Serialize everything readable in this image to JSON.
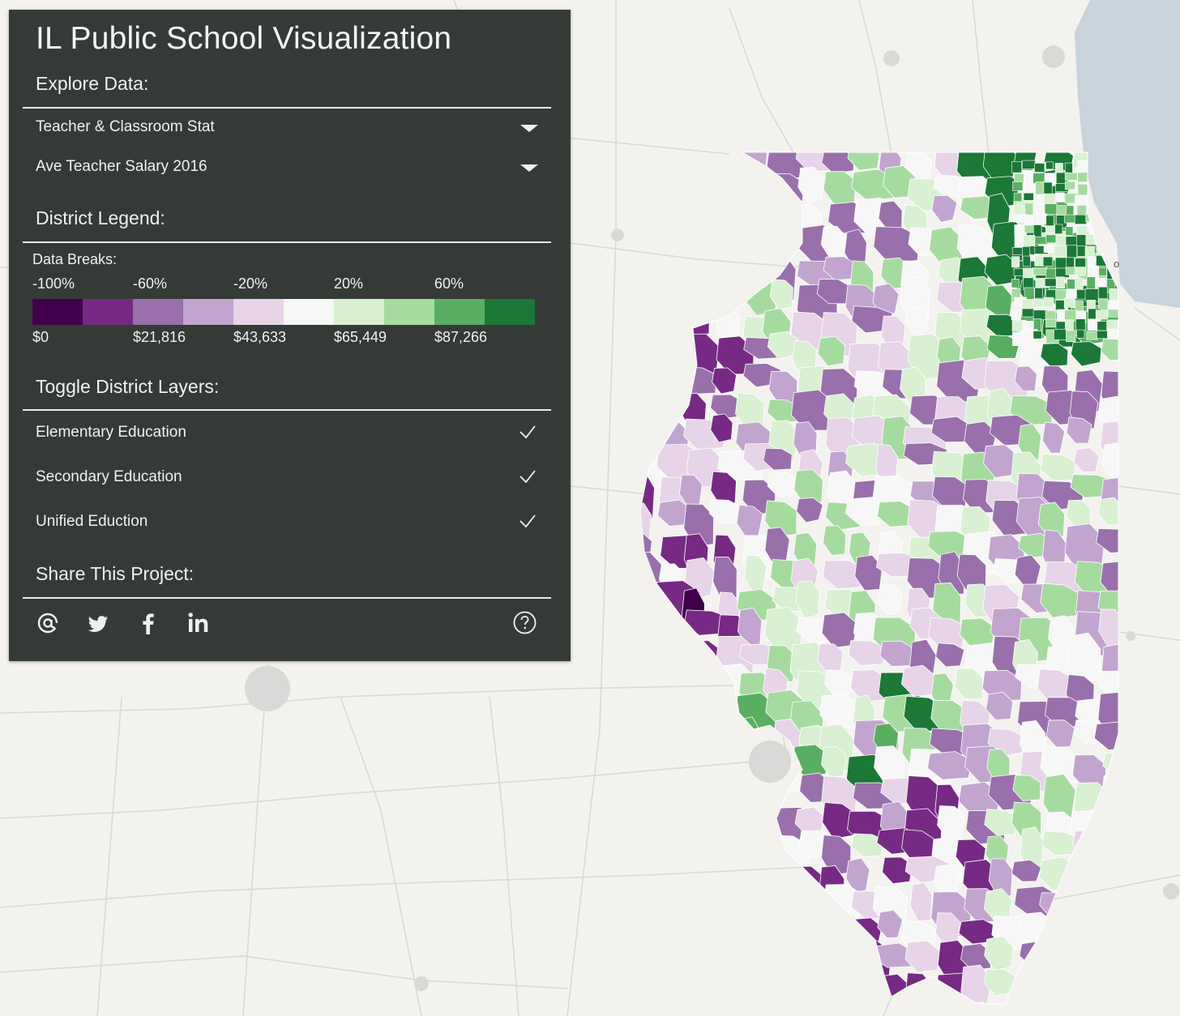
{
  "app": {
    "title": "IL Public School Visualization"
  },
  "explore": {
    "heading": "Explore Data:",
    "category_select": "Teacher & Classroom Stat",
    "metric_select": "Ave Teacher Salary 2016"
  },
  "legend": {
    "heading": "District Legend:",
    "subheading": "Data Breaks:",
    "percent_labels": [
      "-100%",
      "-60%",
      "-20%",
      "20%",
      "60%"
    ],
    "value_labels": [
      "$0",
      "$21,816",
      "$43,633",
      "$65,449",
      "$87,266"
    ],
    "colors": [
      "#40004b",
      "#762a83",
      "#9970ab",
      "#c2a5cf",
      "#e7d4e8",
      "#f7f7f7",
      "#d9f0d3",
      "#a6dba0",
      "#5aae61",
      "#1b7837"
    ]
  },
  "layers": {
    "heading": "Toggle District Layers:",
    "items": [
      {
        "label": "Elementary Education",
        "checked": true
      },
      {
        "label": "Secondary Education",
        "checked": true
      },
      {
        "label": "Unified Eduction",
        "checked": true
      }
    ]
  },
  "share": {
    "heading": "Share This Project:",
    "icons": [
      "email-icon",
      "twitter-icon",
      "facebook-icon",
      "linkedin-icon",
      "help-icon"
    ]
  },
  "map": {
    "water_color": "#c9d3db",
    "land_color": "#f3f2ef",
    "road_color": "#d9d9d9",
    "city_label": "o"
  }
}
